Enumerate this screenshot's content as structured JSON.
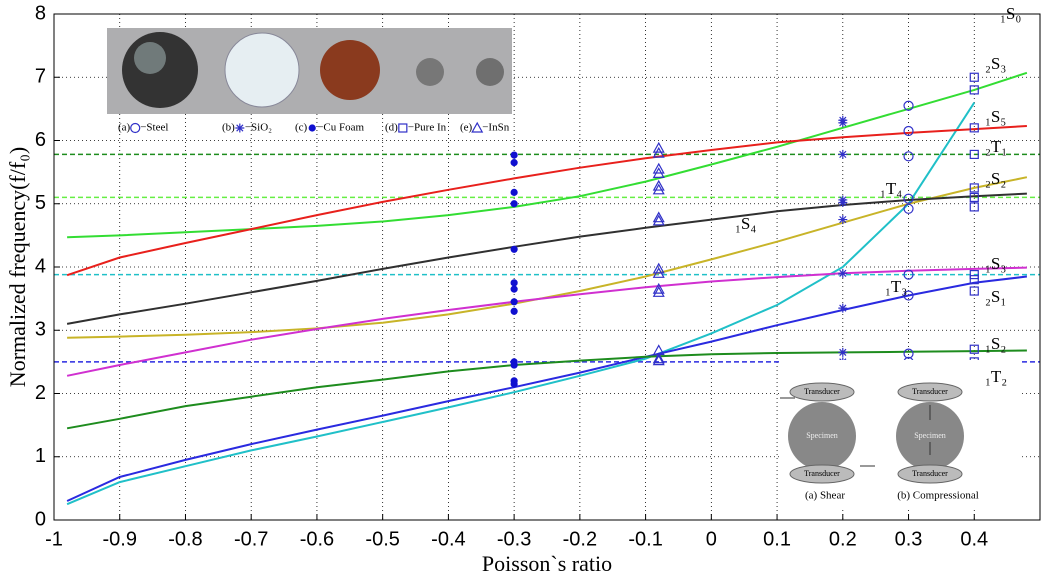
{
  "chart_data": {
    "type": "line",
    "xlabel": "Poisson`s ratio",
    "ylabel": "Normalized frequency(f/f₀)",
    "xlim": [
      -1,
      0.5
    ],
    "ylim": [
      0,
      8
    ],
    "xticks": [
      -1,
      -0.9,
      -0.8,
      -0.7,
      -0.6,
      -0.5,
      -0.4,
      -0.3,
      -0.2,
      -0.1,
      0,
      0.1,
      0.2,
      0.3,
      0.4
    ],
    "yticks": [
      0,
      1,
      2,
      3,
      4,
      5,
      6,
      7,
      8
    ],
    "grid": true,
    "x": [
      -0.98,
      -0.9,
      -0.8,
      -0.7,
      -0.6,
      -0.5,
      -0.4,
      -0.3,
      -0.2,
      -0.1,
      0,
      0.1,
      0.2,
      0.3,
      0.4,
      0.48
    ],
    "series": [
      {
        "name": "₁S₀",
        "color": "#20c0c8",
        "values": [
          0.25,
          0.6,
          0.85,
          1.1,
          1.32,
          1.55,
          1.78,
          2.02,
          2.28,
          2.55,
          2.95,
          3.4,
          4.0,
          5.0,
          6.6,
          null
        ]
      },
      {
        "name": "₂S₃",
        "color": "#33dd33",
        "values": [
          4.47,
          4.5,
          4.55,
          4.6,
          4.65,
          4.72,
          4.82,
          4.95,
          5.12,
          5.35,
          5.62,
          5.9,
          6.2,
          6.5,
          6.8,
          7.07
        ]
      },
      {
        "name": "₁S₅",
        "color": "#e8201c",
        "values": [
          3.87,
          4.15,
          4.38,
          4.6,
          4.82,
          5.03,
          5.22,
          5.4,
          5.57,
          5.72,
          5.85,
          5.97,
          6.05,
          6.12,
          6.18,
          6.23
        ]
      },
      {
        "name": "₂S₂",
        "color": "#c8b428",
        "values": [
          2.88,
          2.9,
          2.93,
          2.97,
          3.03,
          3.12,
          3.25,
          3.42,
          3.62,
          3.85,
          4.12,
          4.4,
          4.7,
          5.0,
          5.25,
          5.42
        ]
      },
      {
        "name": "₁S₄",
        "color": "#303030",
        "values": [
          3.1,
          3.25,
          3.42,
          3.6,
          3.78,
          3.97,
          4.15,
          4.32,
          4.48,
          4.62,
          4.75,
          4.88,
          4.98,
          5.06,
          5.12,
          5.16
        ]
      },
      {
        "name": "₁S₃",
        "color": "#d030d0",
        "values": [
          2.28,
          2.45,
          2.65,
          2.85,
          3.02,
          3.18,
          3.32,
          3.45,
          3.57,
          3.68,
          3.77,
          3.84,
          3.9,
          3.94,
          3.97,
          3.99
        ]
      },
      {
        "name": "₂S₁",
        "color": "#2a2ae0",
        "values": [
          0.3,
          0.68,
          0.95,
          1.2,
          1.43,
          1.65,
          1.88,
          2.1,
          2.33,
          2.58,
          2.82,
          3.08,
          3.32,
          3.55,
          3.75,
          3.85
        ]
      },
      {
        "name": "₁S₂",
        "color": "#1e8c1e",
        "values": [
          1.45,
          1.6,
          1.8,
          1.95,
          2.1,
          2.22,
          2.35,
          2.45,
          2.52,
          2.58,
          2.62,
          2.64,
          2.65,
          2.66,
          2.67,
          2.68
        ]
      }
    ],
    "hlines": [
      {
        "name": "₂T₁",
        "color": "#1e8c1e",
        "value": 5.78
      },
      {
        "name": "₁T₄",
        "color": "#66ee44",
        "value": 5.1
      },
      {
        "name": "₁T₃",
        "color": "#20c0c8",
        "value": 3.88
      },
      {
        "name": "₁T₂",
        "color": "#2a2ae0",
        "value": 2.5
      }
    ],
    "measurements": [
      {
        "label": "(a)",
        "name": "−Steel",
        "marker": "circle",
        "color": "#3030c8",
        "x": 0.3,
        "values": [
          2.5,
          2.63,
          3.55,
          3.88,
          4.92,
          5.08,
          5.75,
          6.15,
          6.55
        ]
      },
      {
        "label": "(b)",
        "name": "−SiO₂",
        "marker": "asterisk",
        "color": "#3030c8",
        "x": 0.2,
        "values": [
          2.5,
          2.65,
          3.35,
          3.9,
          4.75,
          5.02,
          5.06,
          5.78,
          6.28,
          6.32
        ]
      },
      {
        "label": "(c)",
        "name": "−Cu Foam",
        "marker": "dot",
        "color": "#1010d0",
        "x": -0.3,
        "values": [
          2.15,
          2.2,
          2.45,
          2.5,
          3.3,
          3.45,
          3.65,
          3.75,
          4.28,
          5.0,
          5.18,
          5.65,
          5.77
        ]
      },
      {
        "label": "(d)",
        "name": "−Pure In",
        "marker": "square",
        "color": "#3030c8",
        "x": 0.4,
        "values": [
          2.5,
          2.7,
          3.62,
          3.8,
          3.88,
          4.95,
          5.1,
          5.25,
          5.78,
          6.2,
          6.8,
          7.0
        ]
      },
      {
        "label": "(e)",
        "name": "−InSn",
        "marker": "triangle",
        "color": "#3030c8",
        "x": -0.08,
        "values": [
          2.52,
          2.55,
          2.68,
          3.6,
          3.65,
          3.9,
          3.97,
          4.73,
          4.78,
          5.22,
          5.28,
          5.48,
          5.55,
          5.8,
          5.88
        ]
      }
    ],
    "inset": {
      "transducer": "Transducer",
      "specimen": "Specimen",
      "captions": [
        "(a) Shear",
        "(b) Compressional"
      ]
    }
  }
}
